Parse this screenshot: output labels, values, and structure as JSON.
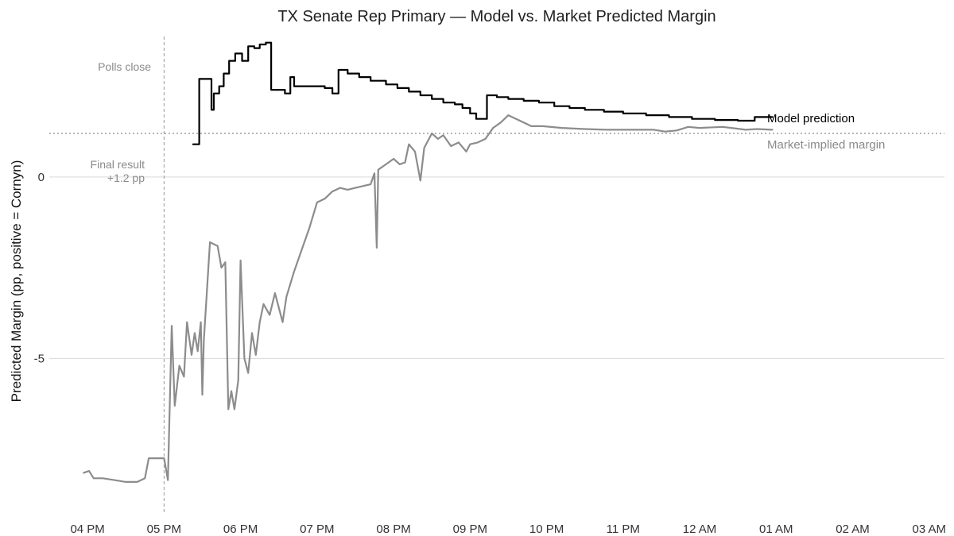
{
  "chart_data": {
    "type": "line",
    "title": "TX Senate Rep Primary — Model vs. Market Predicted Margin",
    "xlabel": "",
    "ylabel": "Predicted Margin (pp, positive = Cornyn)",
    "x_ticks": [
      "04 PM",
      "05 PM",
      "06 PM",
      "07 PM",
      "08 PM",
      "09 PM",
      "10 PM",
      "11 PM",
      "12 AM",
      "01 AM",
      "02 AM",
      "03 AM"
    ],
    "x_range_hours": [
      15.5,
      27.2
    ],
    "y_ticks": [
      0,
      -5
    ],
    "y_tick_labels": [
      "0",
      "-5"
    ],
    "ylim": [
      -9.3,
      4.0
    ],
    "grid": "horizontal",
    "annotations": {
      "polls_close": {
        "label": "Polls close",
        "x_hour": 17.0
      },
      "final_result": {
        "label_line1": "Final result",
        "label_line2": "+1.2 pp",
        "value": 1.2
      }
    },
    "series": [
      {
        "name": "Model prediction",
        "color": "#000000",
        "step": true,
        "points": [
          [
            17.38,
            0.9
          ],
          [
            17.46,
            0.9
          ],
          [
            17.46,
            2.7
          ],
          [
            17.6,
            2.7
          ],
          [
            17.62,
            1.85
          ],
          [
            17.65,
            2.3
          ],
          [
            17.72,
            2.5
          ],
          [
            17.78,
            2.85
          ],
          [
            17.85,
            3.2
          ],
          [
            17.93,
            3.4
          ],
          [
            18.02,
            3.2
          ],
          [
            18.1,
            3.6
          ],
          [
            18.18,
            3.55
          ],
          [
            18.25,
            3.65
          ],
          [
            18.33,
            3.7
          ],
          [
            18.4,
            2.4
          ],
          [
            18.5,
            2.4
          ],
          [
            18.58,
            2.3
          ],
          [
            18.65,
            2.75
          ],
          [
            18.7,
            2.5
          ],
          [
            18.8,
            2.5
          ],
          [
            18.95,
            2.5
          ],
          [
            19.1,
            2.45
          ],
          [
            19.2,
            2.3
          ],
          [
            19.28,
            2.95
          ],
          [
            19.4,
            2.85
          ],
          [
            19.55,
            2.75
          ],
          [
            19.7,
            2.65
          ],
          [
            19.9,
            2.55
          ],
          [
            20.05,
            2.45
          ],
          [
            20.2,
            2.35
          ],
          [
            20.35,
            2.25
          ],
          [
            20.5,
            2.15
          ],
          [
            20.65,
            2.05
          ],
          [
            20.8,
            2.0
          ],
          [
            20.9,
            1.9
          ],
          [
            21.0,
            1.75
          ],
          [
            21.08,
            1.6
          ],
          [
            21.18,
            1.6
          ],
          [
            21.22,
            2.25
          ],
          [
            21.35,
            2.2
          ],
          [
            21.5,
            2.15
          ],
          [
            21.7,
            2.1
          ],
          [
            21.9,
            2.05
          ],
          [
            22.1,
            1.95
          ],
          [
            22.3,
            1.9
          ],
          [
            22.5,
            1.85
          ],
          [
            22.75,
            1.8
          ],
          [
            23.0,
            1.75
          ],
          [
            23.3,
            1.7
          ],
          [
            23.6,
            1.65
          ],
          [
            23.9,
            1.6
          ],
          [
            24.2,
            1.57
          ],
          [
            24.5,
            1.55
          ],
          [
            24.7,
            1.55
          ],
          [
            24.72,
            1.65
          ],
          [
            24.95,
            1.65
          ]
        ]
      },
      {
        "name": "Market-implied margin",
        "color": "#8c8c8c",
        "step": false,
        "points": [
          [
            15.95,
            -8.15
          ],
          [
            16.02,
            -8.1
          ],
          [
            16.08,
            -8.3
          ],
          [
            16.2,
            -8.3
          ],
          [
            16.35,
            -8.35
          ],
          [
            16.5,
            -8.4
          ],
          [
            16.65,
            -8.4
          ],
          [
            16.75,
            -8.3
          ],
          [
            16.8,
            -7.75
          ],
          [
            16.9,
            -7.75
          ],
          [
            17.0,
            -7.75
          ],
          [
            17.05,
            -8.35
          ],
          [
            17.1,
            -4.1
          ],
          [
            17.14,
            -6.3
          ],
          [
            17.2,
            -5.2
          ],
          [
            17.26,
            -5.5
          ],
          [
            17.3,
            -4.0
          ],
          [
            17.36,
            -4.9
          ],
          [
            17.4,
            -4.3
          ],
          [
            17.44,
            -4.8
          ],
          [
            17.48,
            -4.0
          ],
          [
            17.5,
            -6.0
          ],
          [
            17.52,
            -4.5
          ],
          [
            17.6,
            -1.8
          ],
          [
            17.7,
            -1.9
          ],
          [
            17.75,
            -2.5
          ],
          [
            17.8,
            -2.35
          ],
          [
            17.84,
            -6.4
          ],
          [
            17.88,
            -5.9
          ],
          [
            17.92,
            -6.4
          ],
          [
            17.97,
            -5.6
          ],
          [
            18.0,
            -2.3
          ],
          [
            18.05,
            -5.0
          ],
          [
            18.1,
            -5.4
          ],
          [
            18.15,
            -4.3
          ],
          [
            18.2,
            -4.9
          ],
          [
            18.25,
            -4.0
          ],
          [
            18.3,
            -3.5
          ],
          [
            18.38,
            -3.8
          ],
          [
            18.45,
            -3.2
          ],
          [
            18.5,
            -3.6
          ],
          [
            18.55,
            -4.0
          ],
          [
            18.6,
            -3.3
          ],
          [
            18.7,
            -2.6
          ],
          [
            18.8,
            -2.0
          ],
          [
            18.9,
            -1.4
          ],
          [
            19.0,
            -0.7
          ],
          [
            19.1,
            -0.6
          ],
          [
            19.2,
            -0.4
          ],
          [
            19.3,
            -0.3
          ],
          [
            19.4,
            -0.35
          ],
          [
            19.5,
            -0.3
          ],
          [
            19.6,
            -0.25
          ],
          [
            19.7,
            -0.2
          ],
          [
            19.75,
            0.1
          ],
          [
            19.78,
            -1.95
          ],
          [
            19.8,
            0.2
          ],
          [
            19.9,
            0.35
          ],
          [
            20.0,
            0.5
          ],
          [
            20.08,
            0.35
          ],
          [
            20.15,
            0.4
          ],
          [
            20.2,
            0.9
          ],
          [
            20.28,
            0.7
          ],
          [
            20.35,
            -0.1
          ],
          [
            20.4,
            0.8
          ],
          [
            20.5,
            1.2
          ],
          [
            20.58,
            1.05
          ],
          [
            20.65,
            1.15
          ],
          [
            20.75,
            0.85
          ],
          [
            20.85,
            0.95
          ],
          [
            20.95,
            0.7
          ],
          [
            21.0,
            0.9
          ],
          [
            21.1,
            0.95
          ],
          [
            21.2,
            1.05
          ],
          [
            21.3,
            1.35
          ],
          [
            21.4,
            1.5
          ],
          [
            21.5,
            1.7
          ],
          [
            21.6,
            1.6
          ],
          [
            21.7,
            1.5
          ],
          [
            21.8,
            1.4
          ],
          [
            21.95,
            1.4
          ],
          [
            22.2,
            1.35
          ],
          [
            22.5,
            1.32
          ],
          [
            22.8,
            1.3
          ],
          [
            23.1,
            1.3
          ],
          [
            23.4,
            1.3
          ],
          [
            23.55,
            1.25
          ],
          [
            23.7,
            1.28
          ],
          [
            23.85,
            1.38
          ],
          [
            24.0,
            1.35
          ],
          [
            24.3,
            1.38
          ],
          [
            24.5,
            1.33
          ],
          [
            24.6,
            1.3
          ],
          [
            24.75,
            1.32
          ],
          [
            24.95,
            1.3
          ]
        ]
      }
    ]
  }
}
